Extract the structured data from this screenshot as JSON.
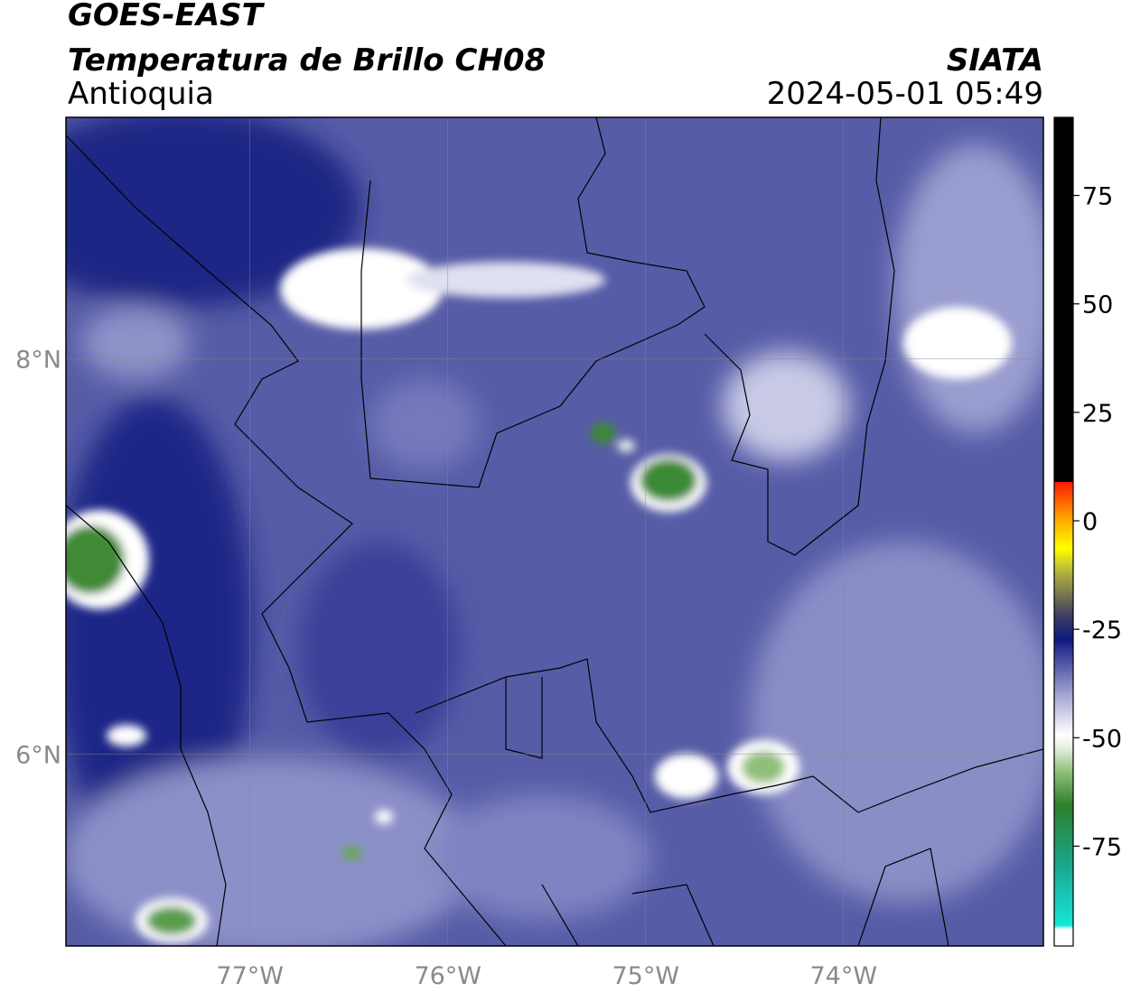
{
  "header": {
    "satellite": "GOES-EAST",
    "product": "Temperatura de Brillo CH08",
    "region": "Antioquia",
    "source": "SIATA",
    "datetime": "2024-05-01 05:49"
  },
  "map": {
    "xlim": [
      -77.93,
      -72.99
    ],
    "ylim": [
      5.03,
      9.22
    ],
    "xticks": [
      {
        "value": -77,
        "label": "77°W"
      },
      {
        "value": -76,
        "label": "76°W"
      },
      {
        "value": -75,
        "label": "75°W"
      },
      {
        "value": -74,
        "label": "74°W"
      }
    ],
    "yticks": [
      {
        "value": 8,
        "label": "8°N"
      },
      {
        "value": 6,
        "label": "6°N"
      }
    ]
  },
  "colorbar": {
    "lim": [
      -98,
      93
    ],
    "ticks": [
      75,
      50,
      25,
      0,
      -25,
      -50,
      -75
    ]
  }
}
